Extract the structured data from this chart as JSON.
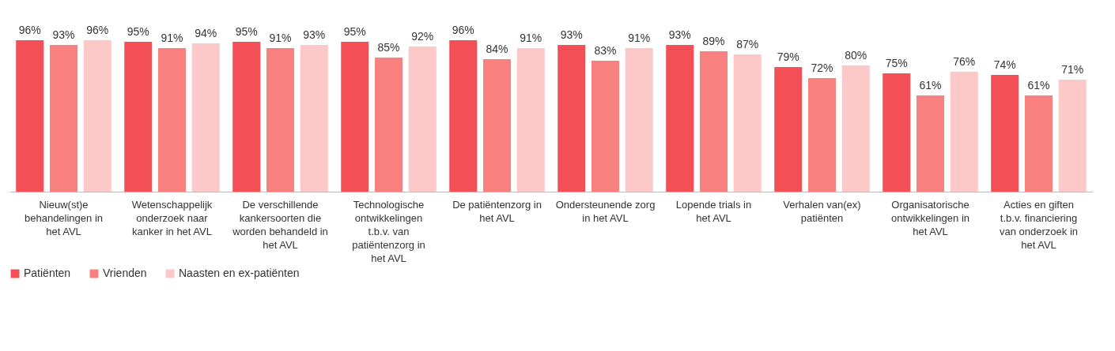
{
  "chart_data": {
    "type": "bar",
    "categories": [
      "Nieuw(st)e behandelingen in het AVL",
      "Wetenschappelijk onderzoek naar kanker in het AVL",
      "De verschillende kankersoorten die worden behandeld in het AVL",
      "Technologische ontwikkelingen t.b.v. van patiëntenzorg in het AVL",
      "De patiëntenzorg in het AVL",
      "Ondersteunende zorg in het AVL",
      "Lopende trials in het AVL",
      "Verhalen van(ex) patiënten",
      "Organisatorische ontwikkelingen in het AVL",
      "Acties en giften t.b.v. financiering van onderzoek in het AVL"
    ],
    "series": [
      {
        "name": "Patiënten",
        "color": "#f25056",
        "values": [
          96,
          95,
          95,
          95,
          96,
          93,
          93,
          79,
          75,
          74
        ],
        "value_labels": [
          "96%",
          "95%",
          "95%",
          "95%",
          "96%",
          "93%",
          "93%",
          "79%",
          "75%",
          "74%"
        ]
      },
      {
        "name": "Vrienden",
        "color": "#f8807f",
        "values": [
          93,
          91,
          91,
          85,
          84,
          83,
          89,
          72,
          61,
          61
        ],
        "value_labels": [
          "93%",
          "91%",
          "91%",
          "85%",
          "84%",
          "83%",
          "89%",
          "72%",
          "61%",
          "61%"
        ]
      },
      {
        "name": "Naasten en ex-patiënten",
        "color": "#fdc8c8",
        "values": [
          96,
          94,
          93,
          92,
          91,
          91,
          87,
          80,
          76,
          71
        ],
        "value_labels": [
          "96%",
          "94%",
          "93%",
          "92%",
          "91%",
          "91%",
          "87%",
          "80%",
          "76%",
          "71%"
        ]
      }
    ],
    "legend": "bottom"
  }
}
